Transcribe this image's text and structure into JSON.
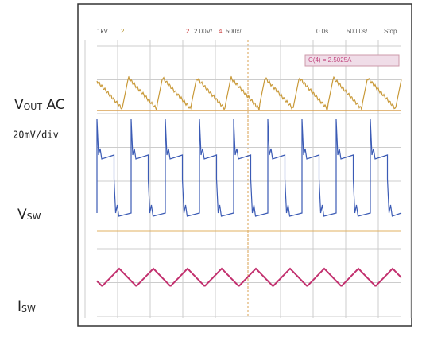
{
  "labels": {
    "vout": "V",
    "vout_sub": "OUT",
    "vout_suffix": " AC",
    "scale": "20mV/div",
    "vsw": "V",
    "vsw_sub": "SW",
    "isw": "I",
    "isw_sub": "SW"
  },
  "screen": {
    "header": [
      "1kV",
      "2",
      "2",
      "2.00V/",
      "4",
      "500x/",
      "0.0s",
      "500.0s/",
      "Stop"
    ],
    "measurement": "C(4) = 2.5025A"
  }
}
